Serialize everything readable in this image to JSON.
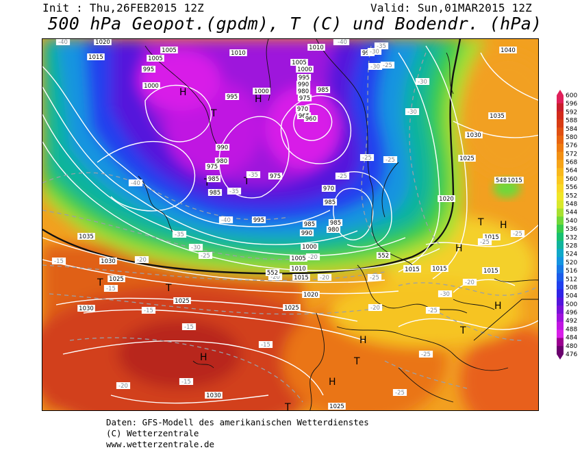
{
  "header": {
    "init": "Init : Thu,26FEB2015 12Z",
    "valid": "Valid: Sun,01MAR2015 12Z",
    "title": "500 hPa Geopot.(gpdm), T (C) und Bodendr. (hPa)"
  },
  "colorbar": {
    "levels": [
      600,
      596,
      592,
      588,
      584,
      580,
      576,
      572,
      568,
      564,
      560,
      556,
      552,
      548,
      544,
      540,
      536,
      532,
      528,
      524,
      520,
      516,
      512,
      508,
      504,
      500,
      496,
      492,
      488,
      484,
      480,
      476
    ],
    "colors": [
      "#e0205a",
      "#c81e2c",
      "#d22a1c",
      "#d83c14",
      "#e05012",
      "#e86410",
      "#ee7a10",
      "#f29014",
      "#f6a418",
      "#f8b81c",
      "#fac820",
      "#f8d826",
      "#f0e628",
      "#d8e82c",
      "#a8e030",
      "#70d83a",
      "#38cc4c",
      "#18c070",
      "#10b49c",
      "#10a8c8",
      "#1494e0",
      "#1878e6",
      "#1c5cea",
      "#2040ee",
      "#3024e6",
      "#5416dc",
      "#7812d8",
      "#9e12dc",
      "#c016e2",
      "#d81ee8",
      "#9a0090",
      "#6a006e"
    ]
  },
  "map": {
    "high_low_markers": [
      {
        "symbol": "H",
        "pos": "upper-left lobe"
      },
      {
        "symbol": "H",
        "pos": "center-north"
      },
      {
        "symbol": "T",
        "pos": "north-central"
      },
      {
        "symbol": "T",
        "pos": "mid-left"
      },
      {
        "symbol": "T",
        "pos": "mid-center"
      },
      {
        "symbol": "T",
        "pos": "atlantic-west"
      },
      {
        "symbol": "T",
        "pos": "atlantic-center"
      },
      {
        "symbol": "H",
        "pos": "azores"
      },
      {
        "symbol": "H",
        "pos": "iberia-north"
      },
      {
        "symbol": "T",
        "pos": "iberia-center"
      },
      {
        "symbol": "H",
        "pos": "iberia-south"
      },
      {
        "symbol": "T",
        "pos": "morocco"
      },
      {
        "symbol": "H",
        "pos": "balkans"
      },
      {
        "symbol": "T",
        "pos": "eastern-europe-1"
      },
      {
        "symbol": "H",
        "pos": "eastern-europe-2"
      },
      {
        "symbol": "H",
        "pos": "black-sea"
      },
      {
        "symbol": "T",
        "pos": "middle-east"
      }
    ],
    "pressure_labels": [
      "1020",
      "1015",
      "1005",
      "995",
      "1000",
      "1005",
      "1010",
      "1010",
      "995",
      "1005",
      "1000",
      "995",
      "990",
      "980",
      "975",
      "985",
      "970",
      "965",
      "960",
      "1000",
      "995",
      "990",
      "980",
      "975",
      "985",
      "985",
      "975",
      "970",
      "985",
      "985",
      "990",
      "985",
      "980",
      "995",
      "1000",
      "1005",
      "1010",
      "1015",
      "1035",
      "1030",
      "1025",
      "1025",
      "1030",
      "1020",
      "1025",
      "1015",
      "1030",
      "1025",
      "1040",
      "1035",
      "1030",
      "1025",
      "1020",
      "1015",
      "1015",
      "1015",
      "1015",
      "1015"
    ],
    "temp_labels": [
      "-40",
      "-35",
      "-40",
      "-35",
      "-30",
      "-30",
      "-30",
      "-25",
      "-25",
      "-30",
      "-25",
      "-25",
      "-35",
      "-40",
      "-35",
      "-40",
      "-35",
      "-30",
      "-25",
      "-20",
      "-20",
      "-15",
      "-20",
      "-15",
      "-15",
      "-15",
      "-15",
      "-15",
      "-20",
      "-25",
      "-20",
      "-25",
      "-20",
      "-25",
      "-25",
      "-30",
      "-25",
      "-25",
      "-20"
    ],
    "extra_labels": [
      "552",
      "548",
      "552"
    ]
  },
  "footer": {
    "line1": "Daten: GFS-Modell des amerikanischen Wetterdienstes",
    "line2": "(C) Wetterzentrale",
    "line3": "www.wetterzentrale.de"
  }
}
